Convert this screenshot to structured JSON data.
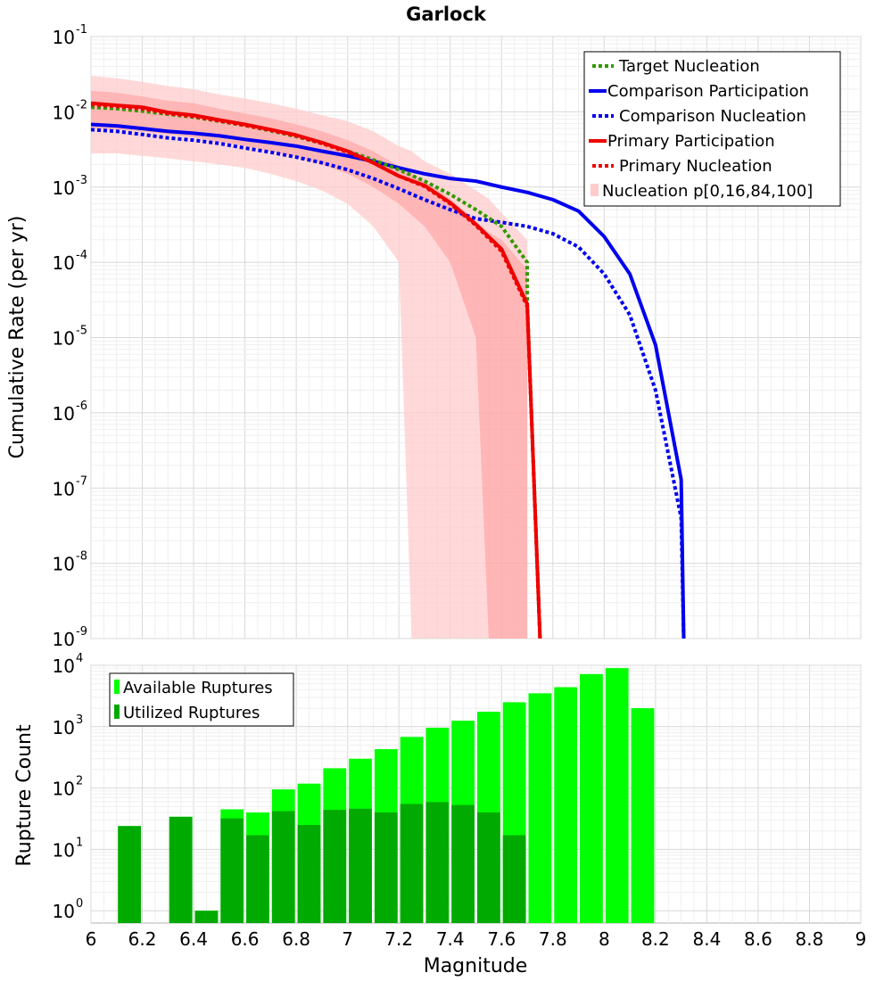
{
  "chart_data": [
    {
      "type": "line",
      "title": "Garlock",
      "xlabel": "",
      "ylabel": "Cumulative Rate (per yr)",
      "xlim": [
        6,
        9
      ],
      "ylim_log10": [
        -9,
        -1
      ],
      "y_tick_exponents": [
        -9,
        -8,
        -7,
        -6,
        -5,
        -4,
        -3,
        -2,
        -1
      ],
      "legend_position": "top-right",
      "bands": [
        {
          "name": "Nucleation p[0,16,84,100]",
          "color": "#ffcccc",
          "outer_x": [
            6.0,
            6.1,
            6.2,
            6.3,
            6.4,
            6.5,
            6.6,
            6.7,
            6.8,
            6.9,
            7.0,
            7.1,
            7.2,
            7.25,
            7.3,
            7.4,
            7.5,
            7.55,
            7.6,
            7.7,
            7.7
          ],
          "outer_upper": [
            0.03,
            0.028,
            0.025,
            0.022,
            0.02,
            0.017,
            0.015,
            0.013,
            0.011,
            0.009,
            0.0075,
            0.0055,
            0.0035,
            0.003,
            0.0022,
            0.0015,
            0.0009,
            0.0007,
            0.00045,
            0.0002,
            8e-05
          ],
          "outer_lower": [
            0.0028,
            0.0028,
            0.0026,
            0.0024,
            0.0022,
            0.002,
            0.0018,
            0.0015,
            0.0012,
            0.0009,
            0.0006,
            0.0003,
            0.0001,
            1e-09,
            1e-09,
            1e-09,
            1e-09,
            1e-09,
            1e-09,
            1e-09,
            1e-09
          ],
          "inner_x": [
            6.0,
            6.1,
            6.2,
            6.3,
            6.4,
            6.5,
            6.6,
            6.7,
            6.8,
            6.9,
            7.0,
            7.1,
            7.2,
            7.3,
            7.4,
            7.5,
            7.55,
            7.6,
            7.7
          ],
          "inner_upper": [
            0.019,
            0.018,
            0.016,
            0.014,
            0.013,
            0.011,
            0.0095,
            0.0082,
            0.0068,
            0.0055,
            0.0042,
            0.003,
            0.0019,
            0.0012,
            0.0007,
            0.00035,
            0.00025,
            0.0002,
            8e-05
          ],
          "inner_lower": [
            0.006,
            0.0058,
            0.0055,
            0.005,
            0.0046,
            0.004,
            0.0035,
            0.003,
            0.0025,
            0.002,
            0.0015,
            0.001,
            0.0006,
            0.0003,
            0.0001,
            1e-05,
            1e-09,
            1e-09,
            1e-09
          ]
        }
      ],
      "series": [
        {
          "name": "Target Nucleation",
          "color": "#339900",
          "style": "dotted",
          "x": [
            6.0,
            6.1,
            6.2,
            6.3,
            6.4,
            6.5,
            6.6,
            6.7,
            6.8,
            6.9,
            7.0,
            7.1,
            7.2,
            7.3,
            7.4,
            7.5,
            7.6,
            7.7,
            7.7,
            7.75
          ],
          "y": [
            0.0115,
            0.011,
            0.0102,
            0.0093,
            0.0085,
            0.0075,
            0.0066,
            0.0056,
            0.0047,
            0.0038,
            0.003,
            0.0023,
            0.0017,
            0.0012,
            0.0008,
            0.0005,
            0.0003,
            0.0001,
            3e-05,
            1e-09
          ]
        },
        {
          "name": "Comparison Participation",
          "color": "#0000ee",
          "style": "solid",
          "x": [
            6.0,
            6.1,
            6.2,
            6.3,
            6.4,
            6.5,
            6.6,
            6.7,
            6.8,
            6.9,
            7.0,
            7.1,
            7.2,
            7.3,
            7.4,
            7.5,
            7.6,
            7.7,
            7.8,
            7.9,
            8.0,
            8.1,
            8.2,
            8.3,
            8.31
          ],
          "y": [
            0.0068,
            0.0065,
            0.006,
            0.0055,
            0.0052,
            0.0048,
            0.0043,
            0.0039,
            0.0035,
            0.003,
            0.0026,
            0.0022,
            0.0018,
            0.0015,
            0.0013,
            0.0012,
            0.001,
            0.00085,
            0.00068,
            0.00048,
            0.00022,
            7e-05,
            8e-06,
            1.3e-07,
            1e-09
          ]
        },
        {
          "name": "Comparison Nucleation",
          "color": "#0000ee",
          "style": "dotted",
          "x": [
            6.0,
            6.1,
            6.2,
            6.3,
            6.4,
            6.5,
            6.6,
            6.7,
            6.8,
            6.9,
            7.0,
            7.1,
            7.2,
            7.3,
            7.4,
            7.5,
            7.6,
            7.7,
            7.8,
            7.9,
            8.0,
            8.1,
            8.2,
            8.3,
            8.31
          ],
          "y": [
            0.0058,
            0.0055,
            0.005,
            0.0045,
            0.0042,
            0.0038,
            0.0033,
            0.0029,
            0.0025,
            0.0021,
            0.0017,
            0.0013,
            0.00095,
            0.00068,
            0.0005,
            0.00038,
            0.00034,
            0.0003,
            0.00024,
            0.00016,
            7e-05,
            2e-05,
            2e-06,
            4e-08,
            1e-09
          ]
        },
        {
          "name": "Primary Participation",
          "color": "#ee0000",
          "style": "solid",
          "x": [
            6.0,
            6.1,
            6.2,
            6.3,
            6.4,
            6.5,
            6.6,
            6.7,
            6.8,
            6.9,
            7.0,
            7.1,
            7.2,
            7.3,
            7.4,
            7.5,
            7.6,
            7.7,
            7.75
          ],
          "y": [
            0.013,
            0.0122,
            0.0115,
            0.0098,
            0.009,
            0.0078,
            0.0068,
            0.0058,
            0.0049,
            0.0039,
            0.003,
            0.0021,
            0.0014,
            0.00105,
            0.00062,
            0.00032,
            0.00015,
            2.8e-05,
            1e-09
          ]
        },
        {
          "name": "Primary Nucleation",
          "color": "#ee0000",
          "style": "dotted",
          "x": [
            6.0,
            6.1,
            6.2,
            6.3,
            6.4,
            6.5,
            6.6,
            6.7,
            6.8,
            6.9,
            7.0,
            7.1,
            7.2,
            7.3,
            7.4,
            7.5,
            7.6,
            7.7,
            7.75
          ],
          "y": [
            0.0125,
            0.0118,
            0.011,
            0.0095,
            0.0087,
            0.0076,
            0.0066,
            0.0057,
            0.0048,
            0.0038,
            0.0029,
            0.0021,
            0.0014,
            0.00102,
            0.0006,
            0.00031,
            0.00014,
            2.6e-05,
            1e-09
          ]
        }
      ]
    },
    {
      "type": "bar",
      "title": "",
      "xlabel": "Magnitude",
      "ylabel": "Rupture Count",
      "xlim": [
        6,
        9
      ],
      "x_ticks": [
        "6",
        "6.2",
        "6.4",
        "6.6",
        "6.8",
        "7",
        "7.2",
        "7.4",
        "7.6",
        "7.8",
        "8",
        "8.2",
        "8.4",
        "8.6",
        "8.8",
        "9"
      ],
      "ylim_log10": [
        -0.2,
        4
      ],
      "y_tick_exponents": [
        0,
        1,
        2,
        3,
        4
      ],
      "legend_position": "top-left",
      "bin_width": 0.1,
      "series": [
        {
          "name": "Available Ruptures",
          "color": "#00ff00",
          "x": [
            6.15,
            6.35,
            6.45,
            6.55,
            6.65,
            6.75,
            6.85,
            6.95,
            7.05,
            7.15,
            7.25,
            7.35,
            7.45,
            7.55,
            7.65,
            7.75,
            7.85,
            7.95,
            8.05,
            8.15
          ],
          "values": [
            24,
            34,
            1,
            45,
            40,
            95,
            118,
            210,
            300,
            430,
            680,
            960,
            1250,
            1750,
            2500,
            3500,
            4400,
            7200,
            9000,
            2000
          ]
        },
        {
          "name": "Utilized Ruptures",
          "color": "#00aa00",
          "x": [
            6.15,
            6.35,
            6.45,
            6.55,
            6.65,
            6.75,
            6.85,
            6.95,
            7.05,
            7.15,
            7.25,
            7.35,
            7.45,
            7.55,
            7.65
          ],
          "values": [
            24,
            34,
            1,
            32,
            17,
            42,
            25,
            44,
            46,
            40,
            55,
            59,
            53,
            40,
            17
          ]
        }
      ]
    }
  ]
}
